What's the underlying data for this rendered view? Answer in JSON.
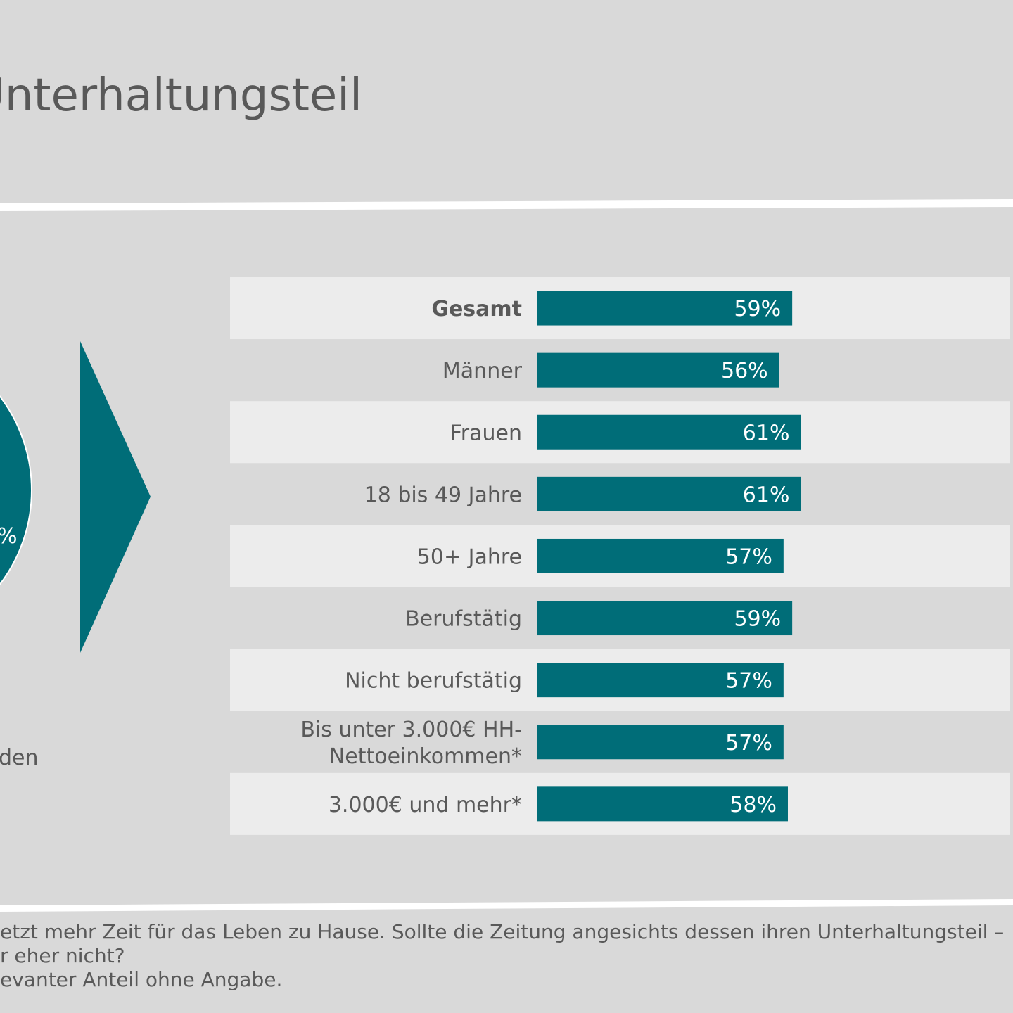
{
  "title": "Unterhaltungsteil",
  "colors": {
    "bar": "#006d78",
    "row_light": "#ececec",
    "background": "#d9d9d9",
    "text": "#595959"
  },
  "left_panel": {
    "pie_label": "%",
    "side_text": "den"
  },
  "chart_data": {
    "type": "bar",
    "orientation": "horizontal",
    "categories": [
      "Gesamt",
      "Männer",
      "Frauen",
      "18 bis 49 Jahre",
      "50+ Jahre",
      "Berufstätig",
      "Nicht berufstätig",
      "Bis unter 3.000€ HH-Nettoeinkommen*",
      "3.000€ und mehr*"
    ],
    "category_lines": [
      [
        "Gesamt"
      ],
      [
        "Männer"
      ],
      [
        "Frauen"
      ],
      [
        "18 bis 49 Jahre"
      ],
      [
        "50+ Jahre"
      ],
      [
        "Berufstätig"
      ],
      [
        "Nicht berufstätig"
      ],
      [
        "Bis unter 3.000€ HH-",
        "Nettoeinkommen*"
      ],
      [
        "3.000€ und mehr*"
      ]
    ],
    "values": [
      59,
      56,
      61,
      61,
      57,
      59,
      57,
      57,
      58
    ],
    "value_labels": [
      "59%",
      "56%",
      "61%",
      "61%",
      "57%",
      "59%",
      "57%",
      "57%",
      "58%"
    ],
    "bold_first": true,
    "xlim": [
      0,
      100
    ],
    "unit": "%"
  },
  "footnotes": [
    "etzt mehr Zeit für das Leben zu Hause. Sollte die Zeitung angesichts dessen ihren Unterhaltungsteil –",
    "r eher nicht?",
    "evanter Anteil ohne Angabe."
  ]
}
